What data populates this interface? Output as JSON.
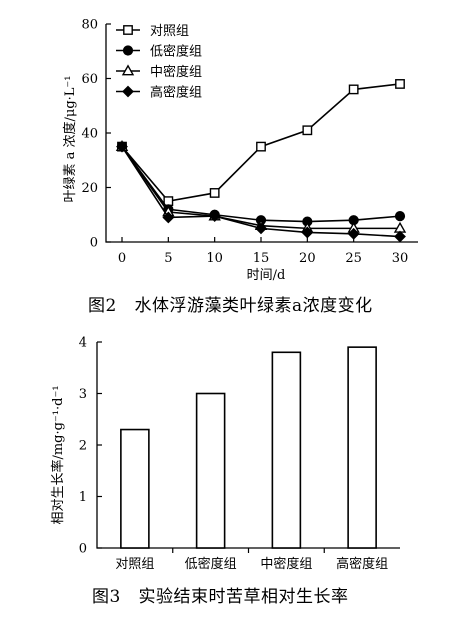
{
  "chart_data": [
    {
      "type": "line",
      "xlabel": "时间/d",
      "ylabel": "叶绿素 a 浓度/μg·L⁻¹",
      "x": [
        0,
        5,
        10,
        15,
        20,
        25,
        30
      ],
      "xticks": [
        "0",
        "5",
        "10",
        "15",
        "20",
        "25",
        "30"
      ],
      "yticks": [
        "0",
        "20",
        "40",
        "60",
        "80"
      ],
      "ylim": [
        0,
        80
      ],
      "xlim": [
        0,
        30
      ],
      "legend_position": "top-left",
      "grid": false,
      "series": [
        {
          "name": "对照组",
          "marker": "square-open",
          "values": [
            35,
            15,
            18,
            35,
            41,
            56,
            58
          ]
        },
        {
          "name": "低密度组",
          "marker": "circle-filled",
          "values": [
            35,
            12,
            10,
            8,
            7.5,
            8,
            9.5
          ]
        },
        {
          "name": "中密度组",
          "marker": "triangle-open",
          "values": [
            35,
            11,
            9.5,
            6,
            5,
            5,
            5
          ]
        },
        {
          "name": "高密度组",
          "marker": "diamond-filled",
          "values": [
            35,
            9,
            9.5,
            5,
            3.5,
            3,
            2
          ]
        }
      ],
      "caption": "图2   水体浮游藻类叶绿素a浓度变化"
    },
    {
      "type": "bar",
      "ylabel": "相对生长率/mg·g⁻¹·d⁻¹",
      "xlabel": "",
      "categories": [
        "对照组",
        "低密度组",
        "中密度组",
        "高密度组"
      ],
      "values": [
        2.3,
        3.0,
        3.8,
        3.9
      ],
      "yticks": [
        "0",
        "1",
        "2",
        "3",
        "4"
      ],
      "ylim": [
        0,
        4
      ],
      "grid": false,
      "caption": "图3   实验结束时苦草相对生长率"
    }
  ],
  "captions": {
    "fig2": "图2   水体浮游藻类叶绿素a浓度变化",
    "fig3": "图3   实验结束时苦草相对生长率"
  },
  "axis_labels": {
    "fig2_y": "叶绿素 a 浓度/μg·L⁻¹",
    "fig2_x": "时间/d",
    "fig3_y": "相对生长率/mg·g⁻¹·d⁻¹"
  }
}
